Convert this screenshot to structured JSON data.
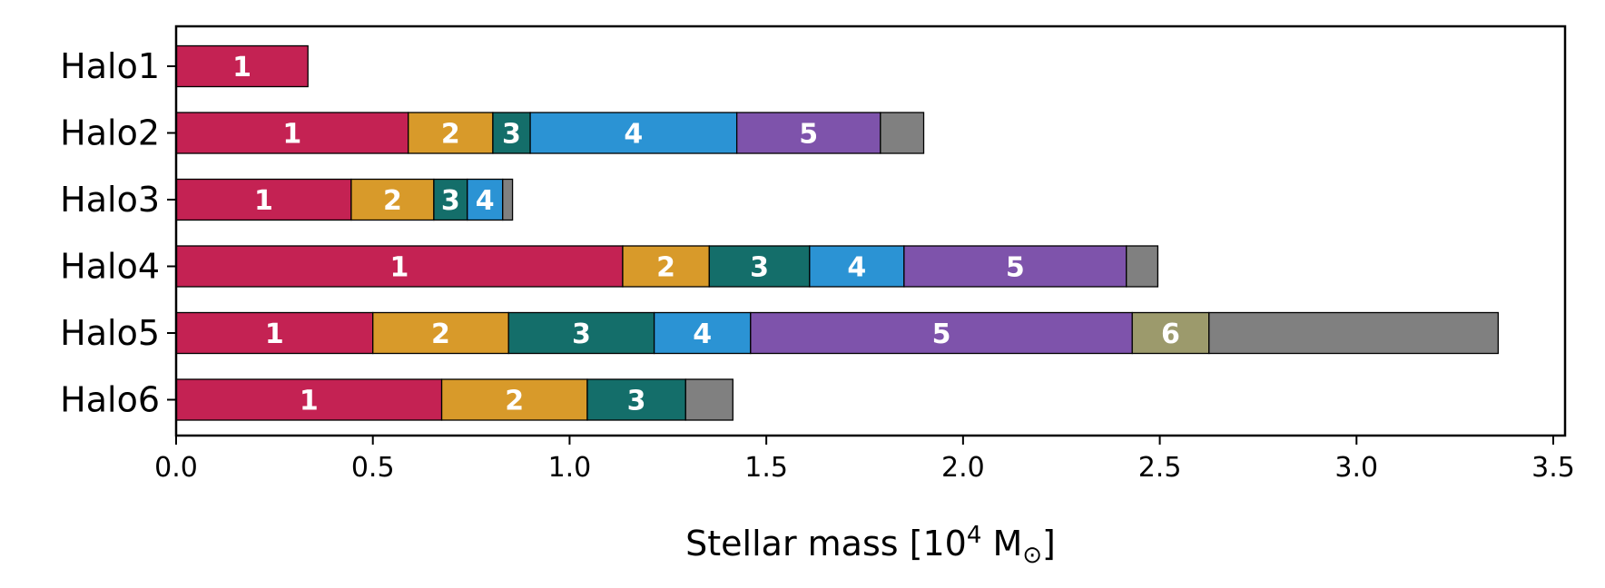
{
  "chart_data": {
    "type": "bar",
    "orientation": "horizontal",
    "stacked": true,
    "xlabel": "Stellar mass [10",
    "xlabel_sup": "4",
    "xlabel_unit": " M",
    "xlabel_sub": "⊙",
    "xlabel_close": "]",
    "xlim": [
      0,
      3.53
    ],
    "xticks": [
      {
        "value": 0.0,
        "label": "0.0"
      },
      {
        "value": 0.5,
        "label": "0.5"
      },
      {
        "value": 1.0,
        "label": "1.0"
      },
      {
        "value": 1.5,
        "label": "1.5"
      },
      {
        "value": 2.0,
        "label": "2.0"
      },
      {
        "value": 2.5,
        "label": "2.5"
      },
      {
        "value": 3.0,
        "label": "3.0"
      },
      {
        "value": 3.5,
        "label": "3.5"
      }
    ],
    "grid": false,
    "colors": {
      "1": "#c42253",
      "2": "#d89a2a",
      "3": "#146e6a",
      "4": "#2b93d4",
      "5": "#7e53ab",
      "6": "#9c9a6c",
      "rest": "#808080"
    },
    "halos": [
      {
        "name": "Halo1",
        "segments": [
          {
            "label": "1",
            "color_key": "1",
            "value": 0.335
          }
        ]
      },
      {
        "name": "Halo2",
        "segments": [
          {
            "label": "1",
            "color_key": "1",
            "value": 0.59
          },
          {
            "label": "2",
            "color_key": "2",
            "value": 0.215
          },
          {
            "label": "3",
            "color_key": "3",
            "value": 0.095
          },
          {
            "label": "4",
            "color_key": "4",
            "value": 0.525
          },
          {
            "label": "5",
            "color_key": "5",
            "value": 0.365
          },
          {
            "label": "",
            "color_key": "rest",
            "value": 0.11
          }
        ]
      },
      {
        "name": "Halo3",
        "segments": [
          {
            "label": "1",
            "color_key": "1",
            "value": 0.445
          },
          {
            "label": "2",
            "color_key": "2",
            "value": 0.21
          },
          {
            "label": "3",
            "color_key": "3",
            "value": 0.085
          },
          {
            "label": "4",
            "color_key": "4",
            "value": 0.09
          },
          {
            "label": "",
            "color_key": "rest",
            "value": 0.025
          }
        ]
      },
      {
        "name": "Halo4",
        "segments": [
          {
            "label": "1",
            "color_key": "1",
            "value": 1.135
          },
          {
            "label": "2",
            "color_key": "2",
            "value": 0.22
          },
          {
            "label": "3",
            "color_key": "3",
            "value": 0.255
          },
          {
            "label": "4",
            "color_key": "4",
            "value": 0.24
          },
          {
            "label": "5",
            "color_key": "5",
            "value": 0.565
          },
          {
            "label": "",
            "color_key": "rest",
            "value": 0.08
          }
        ]
      },
      {
        "name": "Halo5",
        "segments": [
          {
            "label": "1",
            "color_key": "1",
            "value": 0.5
          },
          {
            "label": "2",
            "color_key": "2",
            "value": 0.345
          },
          {
            "label": "3",
            "color_key": "3",
            "value": 0.37
          },
          {
            "label": "4",
            "color_key": "4",
            "value": 0.245
          },
          {
            "label": "5",
            "color_key": "5",
            "value": 0.97
          },
          {
            "label": "6",
            "color_key": "6",
            "value": 0.195
          },
          {
            "label": "",
            "color_key": "rest",
            "value": 0.735
          }
        ]
      },
      {
        "name": "Halo6",
        "segments": [
          {
            "label": "1",
            "color_key": "1",
            "value": 0.675
          },
          {
            "label": "2",
            "color_key": "2",
            "value": 0.37
          },
          {
            "label": "3",
            "color_key": "3",
            "value": 0.25
          },
          {
            "label": "",
            "color_key": "rest",
            "value": 0.12
          }
        ]
      }
    ]
  }
}
